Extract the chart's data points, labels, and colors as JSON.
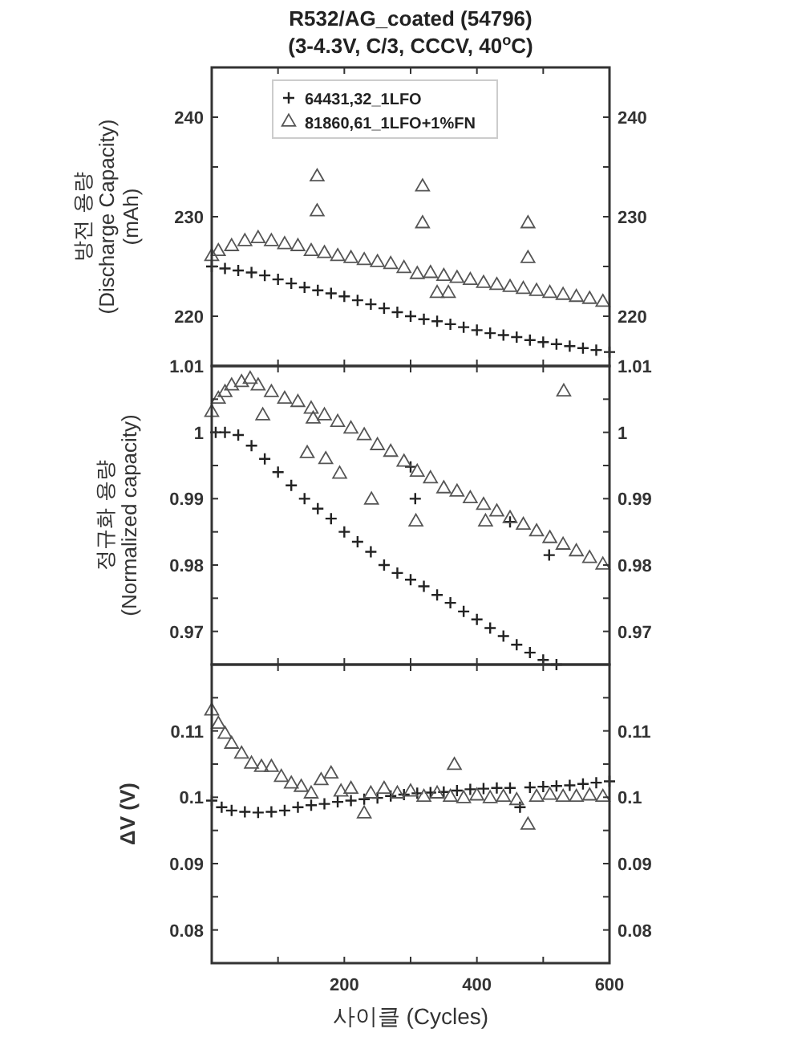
{
  "chart_data": [
    {
      "type": "scatter",
      "title": "R532/AG_coated (54796)",
      "subtitle": "(3-4.3V, C/3, CCCV, 40$^{o}$C)",
      "ylabel": "방전 용량\n(Discharge Capacity)\n(mAh)",
      "xlim": [
        0,
        600
      ],
      "xticks": [
        {
          "value": 100,
          "label": null
        },
        {
          "value": 200,
          "label": null
        },
        {
          "value": 300,
          "label": null
        },
        {
          "value": 400,
          "label": null
        },
        {
          "value": 500,
          "label": null
        }
      ],
      "ylim": [
        215,
        245
      ],
      "yticks": [
        220,
        {
          "value": 225,
          "label": null
        },
        230,
        {
          "value": 235,
          "label": null
        },
        240
      ],
      "y2lim": [
        215,
        245
      ],
      "y2ticks": [
        220,
        {
          "value": 225,
          "label": null
        },
        230,
        {
          "value": 235,
          "label": null
        },
        240
      ],
      "tick_labels": "y",
      "legend": "top",
      "grid": false,
      "series": [
        {
          "name": "64431,32_1LFO",
          "color": "#222222",
          "marker": "cross",
          "x": [
            0,
            20,
            40,
            60,
            80,
            100,
            120,
            140,
            160,
            180,
            200,
            220,
            240,
            260,
            280,
            300,
            320,
            340,
            360,
            380,
            400,
            420,
            440,
            460,
            480,
            500,
            520,
            540,
            560,
            580,
            600
          ],
          "values": [
            225,
            224.8,
            224.6,
            224.4,
            224.1,
            223.7,
            223.3,
            222.9,
            222.6,
            222.3,
            222.0,
            221.6,
            221.2,
            220.8,
            220.4,
            220.0,
            219.7,
            219.5,
            219.2,
            218.9,
            218.6,
            218.3,
            218.1,
            217.9,
            217.6,
            217.4,
            217.2,
            217.0,
            216.8,
            216.6,
            216.4
          ]
        },
        {
          "name": "81860,61_1LFO+1%FN",
          "color": "#555555",
          "marker": "triangle",
          "x": [
            0,
            10,
            30,
            50,
            70,
            90,
            110,
            130,
            150,
            170,
            190,
            210,
            230,
            250,
            270,
            290,
            310,
            330,
            350,
            370,
            390,
            410,
            430,
            450,
            470,
            490,
            510,
            530,
            550,
            570,
            590,
            159,
            159,
            318,
            318,
            477,
            477,
            340,
            357
          ],
          "values": [
            226,
            226.5,
            227,
            227.5,
            227.8,
            227.5,
            227.2,
            227,
            226.5,
            226.3,
            226,
            225.8,
            225.6,
            225.4,
            225.2,
            224.8,
            224.2,
            224.3,
            224,
            223.8,
            223.6,
            223.3,
            223.1,
            222.9,
            222.7,
            222.5,
            222.3,
            222.1,
            221.9,
            221.7,
            221.4,
            234,
            230.5,
            233,
            229.3,
            229.3,
            225.8,
            222.3,
            222.3
          ]
        }
      ]
    },
    {
      "type": "scatter",
      "ylabel": "정규화 용량\n(Normalized capacity)",
      "xlim": [
        0,
        600
      ],
      "xticks": [
        {
          "value": 100,
          "label": null
        },
        {
          "value": 200,
          "label": null
        },
        {
          "value": 300,
          "label": null
        },
        {
          "value": 400,
          "label": null
        },
        {
          "value": 500,
          "label": null
        }
      ],
      "ylim": [
        0.965,
        1.01
      ],
      "yticks": [
        0.97,
        {
          "value": 0.975,
          "label": null
        },
        0.98,
        {
          "value": 0.985,
          "label": null
        },
        0.99,
        {
          "value": 0.995,
          "label": null
        },
        1,
        {
          "value": 1.005,
          "label": null
        },
        1.01
      ],
      "y2lim": [
        0.965,
        1.01
      ],
      "y2ticks": [
        0.97,
        {
          "value": 0.975,
          "label": null
        },
        0.98,
        {
          "value": 0.985,
          "label": null
        },
        0.99,
        {
          "value": 0.995,
          "label": null
        },
        1,
        {
          "value": 1.005,
          "label": null
        },
        1.01
      ],
      "tick_labels": "y",
      "grid": false,
      "series": [
        {
          "color": "#222222",
          "marker": "cross",
          "x": [
            6,
            20,
            40,
            60,
            80,
            100,
            120,
            140,
            160,
            180,
            200,
            220,
            240,
            260,
            280,
            300,
            320,
            340,
            360,
            380,
            400,
            420,
            440,
            460,
            480,
            500,
            520,
            307,
            300,
            450,
            509
          ],
          "values": [
            1.0,
            1.0,
            0.9996,
            0.998,
            0.996,
            0.994,
            0.992,
            0.99,
            0.9885,
            0.987,
            0.985,
            0.9835,
            0.982,
            0.98,
            0.9788,
            0.9778,
            0.9768,
            0.9755,
            0.9743,
            0.973,
            0.9718,
            0.9705,
            0.9693,
            0.968,
            0.9668,
            0.9657,
            0.965,
            0.99,
            0.9948,
            0.9865,
            0.9815
          ]
        },
        {
          "color": "#555555",
          "marker": "triangle",
          "x": [
            0,
            10,
            20,
            30,
            45,
            58,
            70,
            90,
            110,
            130,
            150,
            170,
            190,
            210,
            230,
            250,
            270,
            290,
            310,
            330,
            350,
            370,
            390,
            410,
            430,
            450,
            470,
            490,
            510,
            530,
            550,
            570,
            590,
            77,
            153,
            144,
            172,
            193,
            241,
            308,
            413,
            531
          ],
          "values": [
            1.003,
            1.005,
            1.006,
            1.007,
            1.0075,
            1.008,
            1.007,
            1.006,
            1.005,
            1.0045,
            1.0035,
            1.0025,
            1.0015,
            1.0005,
            0.9995,
            0.998,
            0.997,
            0.9955,
            0.994,
            0.993,
            0.9915,
            0.991,
            0.99,
            0.989,
            0.988,
            0.987,
            0.986,
            0.985,
            0.984,
            0.983,
            0.982,
            0.981,
            0.98,
            1.0025,
            1.002,
            0.9968,
            0.9959,
            0.9937,
            0.9898,
            0.9865,
            0.9865,
            1.0061
          ]
        }
      ]
    },
    {
      "type": "scatter",
      "ylabel": "ΔV (V)",
      "xlabel": "사이클 (Cycles)",
      "xlim": [
        0,
        600
      ],
      "xticks": [
        {
          "value": 100,
          "label": null
        },
        200,
        {
          "value": 300,
          "label": null
        },
        400,
        {
          "value": 500,
          "label": null
        },
        600
      ],
      "ylim": [
        0.075,
        0.12
      ],
      "yticks": [
        0.08,
        {
          "value": 0.085,
          "label": null
        },
        0.09,
        {
          "value": 0.095,
          "label": null
        },
        0.1,
        {
          "value": 0.105,
          "label": null
        },
        0.11,
        {
          "value": 0.115,
          "label": null
        }
      ],
      "y2lim": [
        0.075,
        0.12
      ],
      "y2ticks": [
        0.08,
        {
          "value": 0.085,
          "label": null
        },
        0.09,
        {
          "value": 0.095,
          "label": null
        },
        0.1,
        {
          "value": 0.105,
          "label": null
        },
        0.11,
        {
          "value": 0.115,
          "label": null
        }
      ],
      "grid": false,
      "series": [
        {
          "color": "#222222",
          "marker": "cross",
          "x": [
            0,
            15,
            30,
            50,
            70,
            90,
            110,
            130,
            150,
            170,
            190,
            210,
            230,
            250,
            270,
            290,
            310,
            330,
            350,
            370,
            390,
            410,
            430,
            450,
            465,
            480,
            500,
            520,
            540,
            560,
            580,
            600
          ],
          "values": [
            0.0995,
            0.0985,
            0.098,
            0.0978,
            0.0977,
            0.0978,
            0.098,
            0.0985,
            0.0988,
            0.099,
            0.0993,
            0.0995,
            0.0997,
            0.0999,
            0.1002,
            0.1004,
            0.1006,
            0.1007,
            0.1008,
            0.101,
            0.1012,
            0.1013,
            0.1014,
            0.1014,
            0.0985,
            0.1015,
            0.1016,
            0.1017,
            0.1018,
            0.102,
            0.1022,
            0.1024
          ]
        },
        {
          "color": "#555555",
          "marker": "triangle",
          "x": [
            0,
            10,
            20,
            30,
            45,
            60,
            75,
            90,
            105,
            120,
            135,
            150,
            165,
            180,
            195,
            210,
            230,
            240,
            260,
            280,
            300,
            320,
            340,
            360,
            366,
            380,
            400,
            420,
            440,
            460,
            477,
            490,
            510,
            530,
            550,
            570,
            590
          ],
          "values": [
            0.113,
            0.111,
            0.1095,
            0.108,
            0.1065,
            0.105,
            0.1045,
            0.1045,
            0.103,
            0.102,
            0.1015,
            0.1005,
            0.1025,
            0.1035,
            0.1008,
            0.1012,
            0.0975,
            0.1005,
            0.1012,
            0.1005,
            0.1008,
            0.1,
            0.1005,
            0.1,
            0.1048,
            0.0998,
            0.1002,
            0.0998,
            0.1,
            0.0995,
            0.0958,
            0.1,
            0.1003,
            0.1,
            0.1,
            0.1002,
            0.1
          ]
        }
      ]
    }
  ]
}
